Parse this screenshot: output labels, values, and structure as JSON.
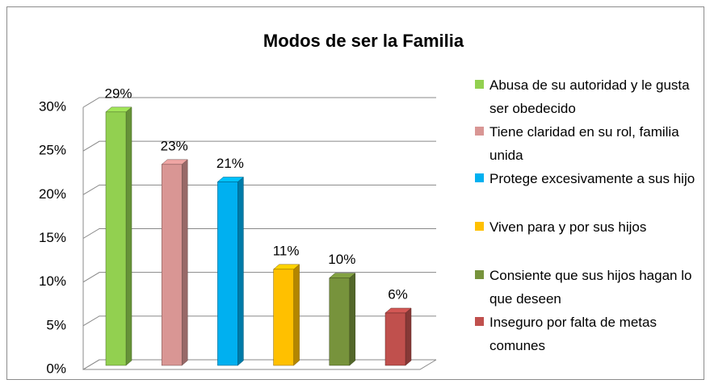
{
  "chart_data": {
    "type": "bar",
    "title": "Modos de ser la Familia",
    "series": [
      {
        "name": "Abusa de su autoridad y le gusta ser obedecido",
        "color": "#92d050",
        "values": [
          29
        ],
        "value_labels": [
          "29%"
        ]
      },
      {
        "name": "Tiene claridad en su rol, familia unida",
        "color": "#d99694",
        "values": [
          23
        ],
        "value_labels": [
          "23%"
        ]
      },
      {
        "name": "Protege excesivamente a sus hijo",
        "color": "#00b0f0",
        "values": [
          21
        ],
        "value_labels": [
          "21%"
        ]
      },
      {
        "name": "Viven para y por sus hijos",
        "color": "#ffc000",
        "values": [
          11
        ],
        "value_labels": [
          "11%"
        ]
      },
      {
        "name": "Consiente que sus hijos hagan lo que deseen",
        "color": "#77933c",
        "values": [
          10
        ],
        "value_labels": [
          "10%"
        ]
      },
      {
        "name": "Inseguro  por falta de metas comunes",
        "color": "#c0504d",
        "values": [
          6
        ],
        "value_labels": [
          "6%"
        ]
      }
    ],
    "ylim": [
      0,
      30
    ],
    "yticks": [
      {
        "value": 0,
        "label": "0%"
      },
      {
        "value": 5,
        "label": "5%"
      },
      {
        "value": 10,
        "label": "10%"
      },
      {
        "value": 15,
        "label": "15%"
      },
      {
        "value": 20,
        "label": "20%"
      },
      {
        "value": 25,
        "label": "25%"
      },
      {
        "value": 30,
        "label": "30%"
      }
    ],
    "grid": true,
    "legend": "right"
  }
}
